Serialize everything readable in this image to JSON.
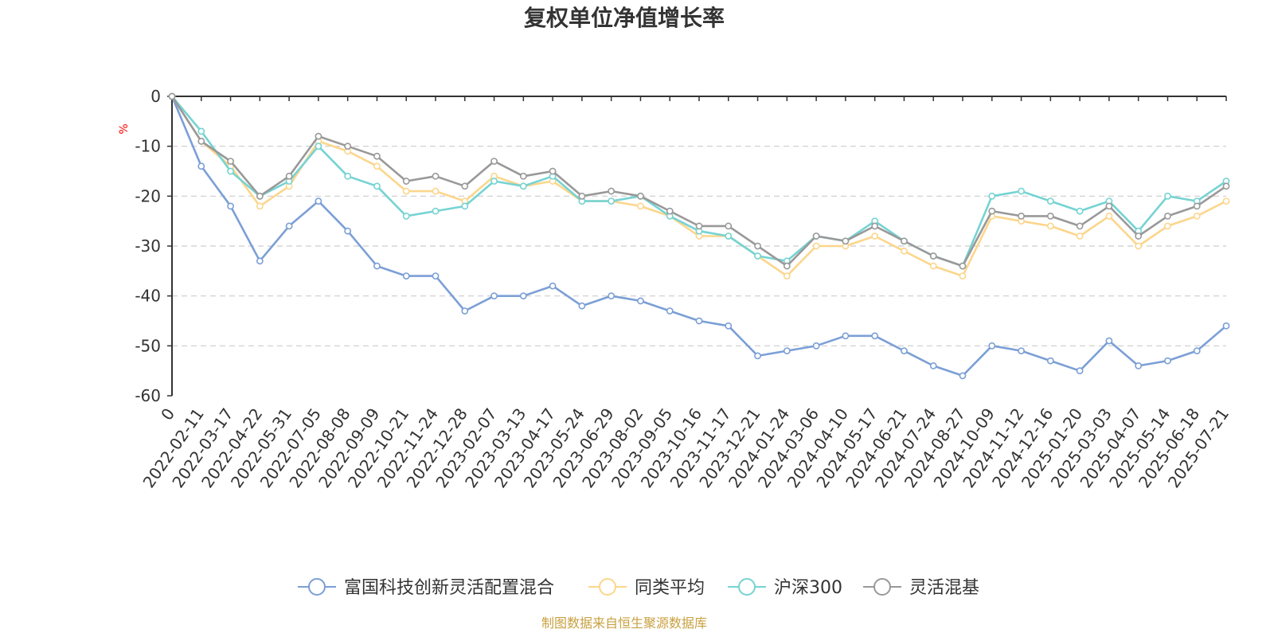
{
  "chart_data": {
    "type": "line",
    "title": "复权单位净值增长率",
    "ylabel": "%",
    "xlabel": "",
    "ylim": [
      -60,
      0
    ],
    "yticks": [
      0,
      -10,
      -20,
      -30,
      -40,
      -50,
      -60
    ],
    "grid": true,
    "legend_position": "bottom",
    "x": [
      "0",
      "2022-02-11",
      "2022-03-17",
      "2022-04-22",
      "2022-05-31",
      "2022-07-05",
      "2022-08-08",
      "2022-09-09",
      "2022-10-21",
      "2022-11-24",
      "2022-12-28",
      "2023-02-07",
      "2023-03-13",
      "2023-04-17",
      "2023-05-24",
      "2023-06-29",
      "2023-08-02",
      "2023-09-05",
      "2023-10-16",
      "2023-11-17",
      "2023-12-21",
      "2024-01-24",
      "2024-03-06",
      "2024-04-10",
      "2024-05-17",
      "2024-06-21",
      "2024-07-24",
      "2024-08-27",
      "2024-10-09",
      "2024-11-12",
      "2024-12-16",
      "2025-01-20",
      "2025-03-03",
      "2025-04-07",
      "2025-05-14",
      "2025-06-18",
      "2025-07-21"
    ],
    "series": [
      {
        "name": "富国科技创新灵活配置混合",
        "color": "#7b9fd6",
        "values": [
          0,
          -14,
          -22,
          -33,
          -26,
          -21,
          -27,
          -34,
          -36,
          -36,
          -43,
          -40,
          -40,
          -38,
          -42,
          -40,
          -41,
          -43,
          -45,
          -46,
          -52,
          -51,
          -50,
          -48,
          -48,
          -51,
          -54,
          -56,
          -50,
          -51,
          -53,
          -55,
          -49,
          -54,
          -53,
          -51,
          -46
        ]
      },
      {
        "name": "同类平均",
        "color": "#fcd68c",
        "values": [
          0,
          -9,
          -14,
          -22,
          -18,
          -9,
          -11,
          -14,
          -19,
          -19,
          -21,
          -16,
          -18,
          -17,
          -21,
          -21,
          -22,
          -24,
          -28,
          -28,
          -32,
          -36,
          -30,
          -30,
          -28,
          -31,
          -34,
          -36,
          -24,
          -25,
          -26,
          -28,
          -24,
          -30,
          -26,
          -24,
          -21
        ]
      },
      {
        "name": "沪深300",
        "color": "#76d3d3",
        "values": [
          0,
          -7,
          -15,
          -20,
          -17,
          -10,
          -16,
          -18,
          -24,
          -23,
          -22,
          -17,
          -18,
          -16,
          -21,
          -21,
          -20,
          -24,
          -27,
          -28,
          -32,
          -33,
          -28,
          -29,
          -25,
          -29,
          -32,
          -34,
          -20,
          -19,
          -21,
          -23,
          -21,
          -27,
          -20,
          -21,
          -17
        ]
      },
      {
        "name": "灵活混基",
        "color": "#999999",
        "values": [
          0,
          -9,
          -13,
          -20,
          -16,
          -8,
          -10,
          -12,
          -17,
          -16,
          -18,
          -13,
          -16,
          -15,
          -20,
          -19,
          -20,
          -23,
          -26,
          -26,
          -30,
          -34,
          -28,
          -29,
          -26,
          -29,
          -32,
          -34,
          -23,
          -24,
          -24,
          -26,
          -22,
          -28,
          -24,
          -22,
          -18
        ]
      }
    ]
  },
  "source_text": "制图数据来自恒生聚源数据库"
}
